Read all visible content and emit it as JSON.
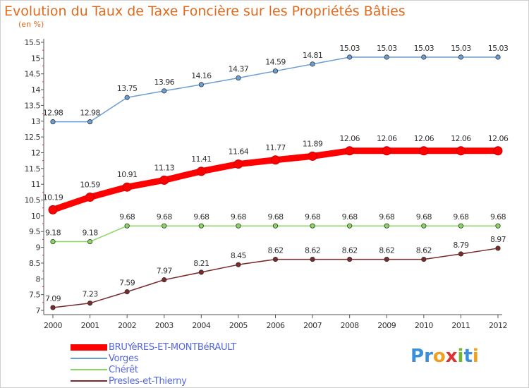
{
  "chart_data": {
    "type": "line",
    "title": "Evolution du Taux de Taxe Foncière sur les Propriétés Bâties",
    "subtitle": "(en %)",
    "x": [
      "2000",
      "2001",
      "2002",
      "2003",
      "2004",
      "2005",
      "2006",
      "2007",
      "2008",
      "2009",
      "2010",
      "2011",
      "2012"
    ],
    "ylim": [
      7,
      15.5
    ],
    "yticks": [
      "7",
      "7.5",
      "8",
      "8.5",
      "9",
      "9.5",
      "10",
      "10.5",
      "11",
      "11.5",
      "12",
      "12.5",
      "13",
      "13.5",
      "14",
      "14.5",
      "15",
      "15.5"
    ],
    "grid": false,
    "legend_position": "bottom-left",
    "series": [
      {
        "name": "BRUYèRES-ET-MONTBéRAULT",
        "color": "#ff0000",
        "values": [
          10.19,
          10.59,
          10.91,
          11.13,
          11.41,
          11.64,
          11.77,
          11.89,
          12.06,
          12.06,
          12.06,
          12.06,
          12.06
        ],
        "labels": [
          "10.19",
          "10.59",
          "10.91",
          "11.13",
          "11.41",
          "11.64",
          "11.77",
          "11.89",
          "12.06",
          "12.06",
          "12.06",
          "12.06",
          "12.06"
        ]
      },
      {
        "name": "Vorges",
        "color": "#6a9fd4",
        "values": [
          12.98,
          12.98,
          13.75,
          13.96,
          14.16,
          14.37,
          14.59,
          14.81,
          15.03,
          15.03,
          15.03,
          15.03,
          15.03
        ],
        "labels": [
          "12.98",
          "12.98",
          "13.75",
          "13.96",
          "14.16",
          "14.37",
          "14.59",
          "14.81",
          "15.03",
          "15.03",
          "15.03",
          "15.03",
          "15.03"
        ]
      },
      {
        "name": "Chérêt",
        "color": "#88d860",
        "values": [
          9.18,
          9.18,
          9.68,
          9.68,
          9.68,
          9.68,
          9.68,
          9.68,
          9.68,
          9.68,
          9.68,
          9.68,
          9.68
        ],
        "labels": [
          "9.18",
          "9.18",
          "9.68",
          "9.68",
          "9.68",
          "9.68",
          "9.68",
          "9.68",
          "9.68",
          "9.68",
          "9.68",
          "9.68",
          "9.68"
        ]
      },
      {
        "name": "Presles-et-Thierny",
        "color": "#7a2a2a",
        "values": [
          7.09,
          7.23,
          7.59,
          7.97,
          8.21,
          8.45,
          8.62,
          8.62,
          8.62,
          8.62,
          8.62,
          8.79,
          8.97
        ],
        "labels": [
          "7.09",
          "7.23",
          "7.59",
          "7.97",
          "8.21",
          "8.45",
          "8.62",
          "8.62",
          "8.62",
          "8.62",
          "8.62",
          "8.79",
          "8.97"
        ]
      }
    ]
  },
  "logo": {
    "letters": [
      "P",
      "r",
      "o",
      "x",
      "i",
      "t",
      "i"
    ],
    "colors": [
      "#3a8fd8",
      "#3a8fd8",
      "#f0a020",
      "#e03030",
      "#70b830",
      "#3a8fd8",
      "#f0a020"
    ]
  }
}
